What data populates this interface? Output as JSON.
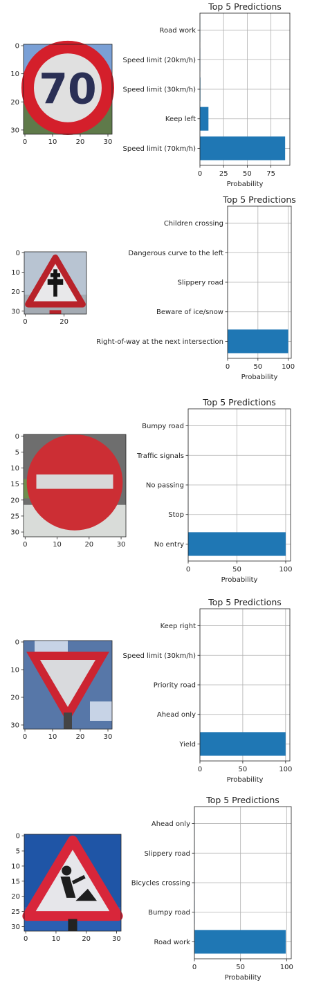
{
  "chart_data": [
    {
      "type": "bar",
      "orientation": "horizontal",
      "title": "Top 5 Predictions",
      "xlabel": "Probability",
      "categories": [
        "Speed limit (70km/h)",
        "Keep left",
        "Speed limit (30km/h)",
        "Speed limit (20km/h)",
        "Road work"
      ],
      "values": [
        90,
        9,
        0.5,
        0.3,
        0.2
      ],
      "xlim": [
        0,
        95
      ],
      "xticks": [
        "0",
        "25",
        "50",
        "75"
      ],
      "xtick_values": [
        0,
        25,
        50,
        75
      ],
      "grid": true,
      "image_axis": {
        "xticks": [
          "0",
          "10",
          "20",
          "30"
        ],
        "yticks": [
          "0",
          "10",
          "20",
          "30"
        ]
      },
      "colors": {
        "bar": "#1f77b4"
      }
    },
    {
      "type": "bar",
      "orientation": "horizontal",
      "title": "Top 5 Predictions",
      "xlabel": "Probability",
      "categories": [
        "Right-of-way at the next intersection",
        "Beware of ice/snow",
        "Slippery road",
        "Dangerous curve to the left",
        "Children crossing"
      ],
      "values": [
        100,
        0.1,
        0.1,
        0.05,
        0.05
      ],
      "xlim": [
        0,
        105
      ],
      "xticks": [
        "0",
        "50",
        "100"
      ],
      "xtick_values": [
        0,
        50,
        100
      ],
      "grid": true,
      "image_axis": {
        "xticks": [
          "0",
          "20"
        ],
        "yticks": [
          "0",
          "10",
          "20",
          "30"
        ]
      },
      "colors": {
        "bar": "#1f77b4"
      }
    },
    {
      "type": "bar",
      "orientation": "horizontal",
      "title": "Top 5 Predictions",
      "xlabel": "Probability",
      "categories": [
        "No entry",
        "Stop",
        "No passing",
        "Traffic signals",
        "Bumpy road"
      ],
      "values": [
        100,
        0.05,
        0.05,
        0.02,
        0.02
      ],
      "xlim": [
        0,
        105
      ],
      "xticks": [
        "0",
        "50",
        "100"
      ],
      "xtick_values": [
        0,
        50,
        100
      ],
      "grid": true,
      "image_axis": {
        "xticks": [
          "0",
          "10",
          "20",
          "30"
        ],
        "yticks": [
          "0",
          "5",
          "10",
          "15",
          "20",
          "25",
          "30"
        ]
      },
      "colors": {
        "bar": "#1f77b4"
      }
    },
    {
      "type": "bar",
      "orientation": "horizontal",
      "title": "Top 5 Predictions",
      "xlabel": "Probability",
      "categories": [
        "Yield",
        "Ahead only",
        "Priority road",
        "Speed limit (30km/h)",
        "Keep right"
      ],
      "values": [
        100,
        0.05,
        0.05,
        0.02,
        0.02
      ],
      "xlim": [
        0,
        105
      ],
      "xticks": [
        "0",
        "50",
        "100"
      ],
      "xtick_values": [
        0,
        50,
        100
      ],
      "grid": true,
      "image_axis": {
        "xticks": [
          "0",
          "10",
          "20",
          "30"
        ],
        "yticks": [
          "0",
          "10",
          "20",
          "30"
        ]
      },
      "colors": {
        "bar": "#1f77b4"
      }
    },
    {
      "type": "bar",
      "orientation": "horizontal",
      "title": "Top 5 Predictions",
      "xlabel": "Probability",
      "categories": [
        "Road work",
        "Bumpy road",
        "Bicycles crossing",
        "Slippery road",
        "Ahead only"
      ],
      "values": [
        99,
        0.3,
        0.2,
        0.1,
        0.1
      ],
      "xlim": [
        0,
        105
      ],
      "xticks": [
        "0",
        "50",
        "100"
      ],
      "xtick_values": [
        0,
        50,
        100
      ],
      "grid": true,
      "image_axis": {
        "xticks": [
          "0",
          "10",
          "20",
          "30"
        ],
        "yticks": [
          "0",
          "5",
          "10",
          "15",
          "20",
          "25",
          "30"
        ]
      },
      "colors": {
        "bar": "#1f77b4"
      }
    }
  ]
}
